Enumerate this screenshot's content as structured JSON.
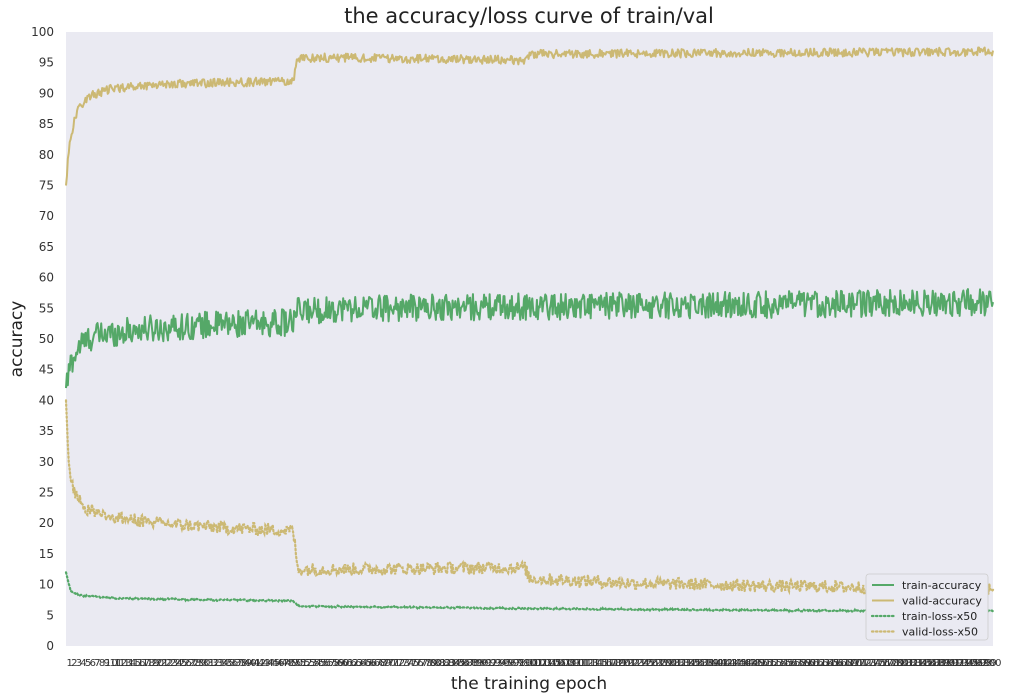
{
  "chart_data": {
    "type": "line",
    "title": "the accuracy/loss curve of train/val",
    "xlabel": "the training epoch",
    "ylabel": "accuracy",
    "ylim": [
      0,
      100
    ],
    "yticks": [
      0,
      5,
      10,
      15,
      20,
      25,
      30,
      35,
      40,
      45,
      50,
      55,
      60,
      65,
      70,
      75,
      80,
      85,
      90,
      95,
      100
    ],
    "xlim": [
      0,
      200
    ],
    "xtick_note": "dense overlapping epoch tick labels along x-axis (illegible)",
    "grid": false,
    "background": "#eaeaf2",
    "legend_position": "lower-right",
    "series": [
      {
        "name": "train-accuracy",
        "color": "#55a868",
        "style": "solid",
        "knots_x": [
          0,
          1,
          3,
          6,
          15,
          30,
          49,
          50,
          60,
          100,
          150,
          200
        ],
        "knots_y": [
          42,
          46,
          49,
          50.5,
          51.5,
          52.3,
          52.7,
          54.5,
          55,
          55.3,
          55.6,
          56
        ],
        "noise": 2.2
      },
      {
        "name": "valid-accuracy",
        "color": "#ccb974",
        "style": "solid",
        "knots_x": [
          0,
          0.5,
          1,
          2,
          3,
          5,
          10,
          20,
          49,
          50,
          60,
          99,
          100,
          150,
          200
        ],
        "knots_y": [
          75,
          80,
          83,
          86,
          88,
          89.5,
          90.8,
          91.5,
          92,
          95.8,
          95.8,
          95.4,
          96.4,
          96.6,
          96.8
        ],
        "noise": 0.7
      },
      {
        "name": "train-loss-x50",
        "color": "#55a868",
        "style": "dotted",
        "knots_x": [
          0,
          1,
          3,
          10,
          30,
          49,
          50,
          100,
          150,
          200
        ],
        "knots_y": [
          12,
          9,
          8.2,
          7.8,
          7.5,
          7.4,
          6.5,
          6.1,
          5.8,
          5.7
        ],
        "noise": 0.15
      },
      {
        "name": "valid-loss-x50",
        "color": "#ccb974",
        "style": "dotted",
        "knots_x": [
          0,
          0.5,
          1,
          2,
          4,
          10,
          20,
          35,
          49,
          50,
          60,
          99,
          100,
          120,
          150,
          200
        ],
        "knots_y": [
          40,
          30,
          27,
          25,
          22.5,
          21,
          20,
          19.2,
          18.8,
          12.5,
          12.5,
          12.8,
          11,
          10.3,
          9.8,
          9.3
        ],
        "noise": 1.0
      }
    ]
  }
}
